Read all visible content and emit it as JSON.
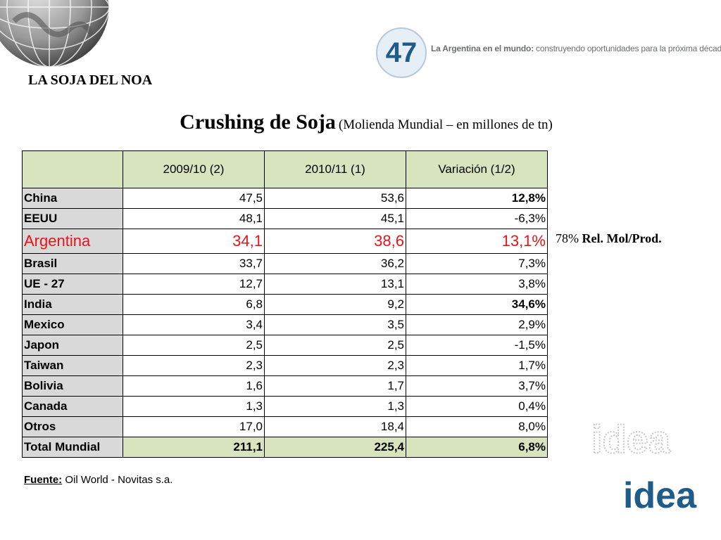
{
  "header": {
    "section_title": "LA SOJA DEL NOA",
    "logo_text": "47",
    "tagline_bold": "La Argentina en el mundo:",
    "tagline_rest": " construyendo oportunidades para la próxima década"
  },
  "title": {
    "main": "Crushing  de Soja",
    "sub": "(Molienda Mundial – en millones de tn)"
  },
  "table": {
    "columns": [
      "2009/10 (2)",
      "2010/11 (1)",
      "Variación (1/2)"
    ],
    "rows": [
      {
        "country": "China",
        "v1": "47,5",
        "v2": "53,6",
        "var": "12,8%"
      },
      {
        "country": "EEUU",
        "v1": "48,1",
        "v2": "45,1",
        "var": "-6,3%"
      },
      {
        "country": "Argentina",
        "v1": "34,1",
        "v2": "38,6",
        "var": "13,1%"
      },
      {
        "country": "Brasil",
        "v1": "33,7",
        "v2": "36,2",
        "var": "7,3%"
      },
      {
        "country": "UE - 27",
        "v1": "12,7",
        "v2": "13,1",
        "var": "3,8%"
      },
      {
        "country": "India",
        "v1": "6,8",
        "v2": "9,2",
        "var": "34,6%"
      },
      {
        "country": "Mexico",
        "v1": "3,4",
        "v2": "3,5",
        "var": "2,9%"
      },
      {
        "country": "Japon",
        "v1": "2,5",
        "v2": "2,5",
        "var": "-1,5%"
      },
      {
        "country": "Taiwan",
        "v1": "2,3",
        "v2": "2,3",
        "var": "1,7%"
      },
      {
        "country": "Bolivia",
        "v1": "1,6",
        "v2": "1,7",
        "var": "3,7%"
      },
      {
        "country": "Canada",
        "v1": "1,3",
        "v2": "1,3",
        "var": "0,4%"
      },
      {
        "country": "Otros",
        "v1": "17,0",
        "v2": "18,4",
        "var": "8,0%"
      }
    ],
    "total": {
      "country": "Total Mundial",
      "v1": "211,1",
      "v2": "225,4",
      "var": "6,8%"
    }
  },
  "note": {
    "pct": "78%",
    "text": "Rel. Mol/Prod."
  },
  "source": {
    "label": "Fuente:",
    "text": " Oil World - Novitas s.a."
  },
  "brand": {
    "outline_text": "idea",
    "solid_text": "idea"
  },
  "colors": {
    "header_fill": "#d7e4bd",
    "country_fill": "#d9d9d9",
    "highlight": "#e8141b",
    "brand_blue": "#1f5c8a"
  }
}
